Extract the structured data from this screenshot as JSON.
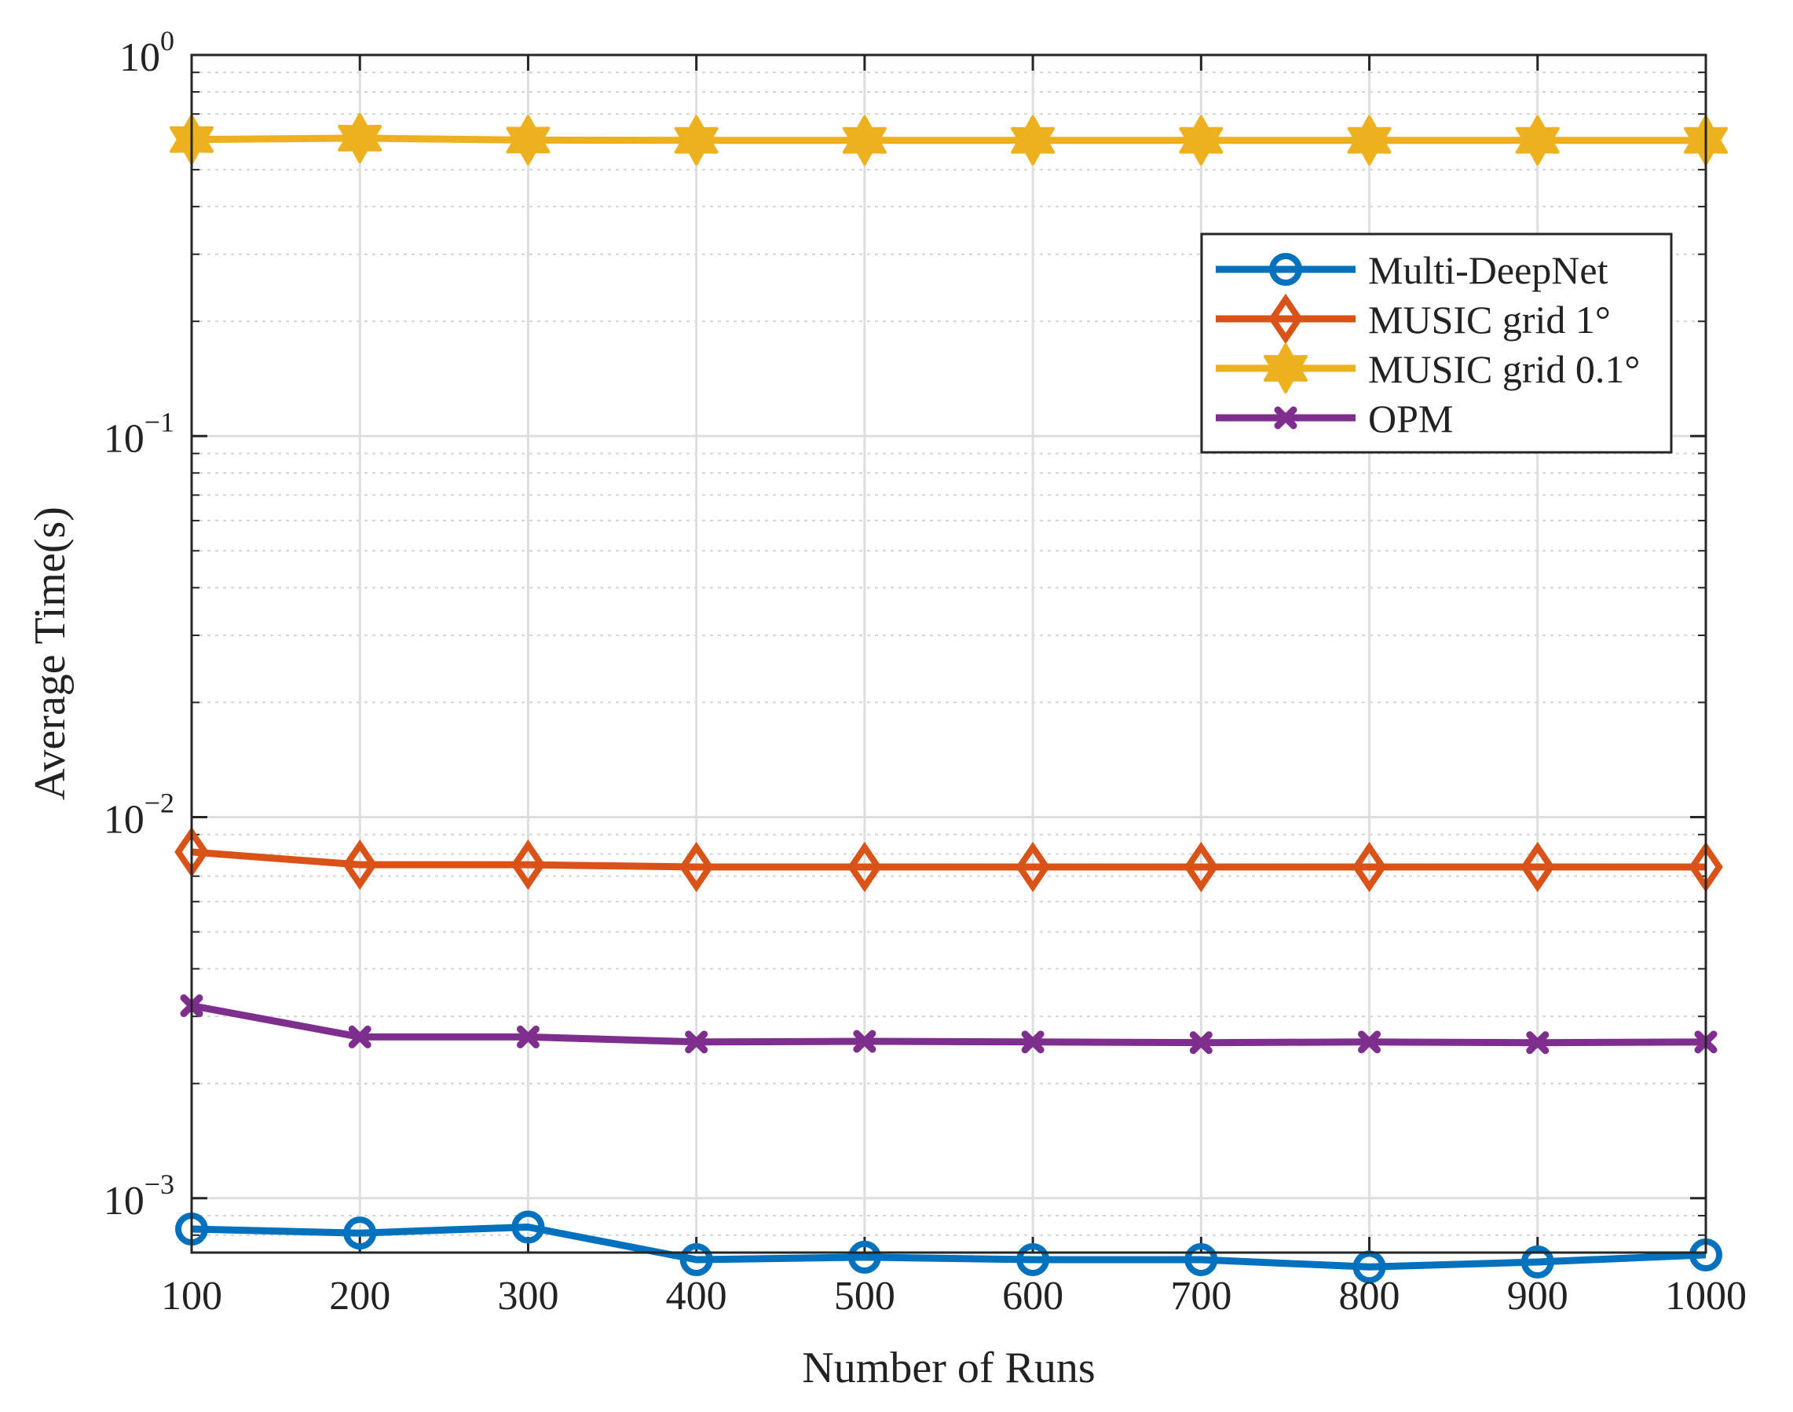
{
  "chart_data": {
    "type": "line",
    "title": "",
    "xlabel": "Number of Runs",
    "ylabel": "Average Time(s)",
    "yscale": "log",
    "xlim": [
      100,
      1000
    ],
    "ylim": [
      0.00072,
      1
    ],
    "x": [
      100,
      200,
      300,
      400,
      500,
      600,
      700,
      800,
      900,
      1000
    ],
    "xticks": [
      "100",
      "200",
      "300",
      "400",
      "500",
      "600",
      "700",
      "800",
      "900",
      "1000"
    ],
    "yticks": [
      {
        "value": 0.001,
        "base": "10",
        "exp": "−3"
      },
      {
        "value": 0.01,
        "base": "10",
        "exp": "−2"
      },
      {
        "value": 0.1,
        "base": "10",
        "exp": "−1"
      },
      {
        "value": 1,
        "base": "10",
        "exp": "0"
      }
    ],
    "grid": true,
    "minor_grid": true,
    "legend_position": "top-right",
    "series": [
      {
        "name": "Multi-DeepNet",
        "color": "#0072BD",
        "marker": "circle",
        "values": [
          0.00083,
          0.00081,
          0.00084,
          0.00069,
          0.0007,
          0.00069,
          0.00069,
          0.00066,
          0.00068,
          0.00071
        ]
      },
      {
        "name": "MUSIC grid 1°",
        "color": "#D95319",
        "marker": "diamond",
        "values": [
          0.0081,
          0.0075,
          0.0075,
          0.0074,
          0.0074,
          0.0074,
          0.0074,
          0.0074,
          0.0074,
          0.0074
        ]
      },
      {
        "name": "MUSIC grid 0.1°",
        "color": "#EDB120",
        "marker": "hexagram",
        "values": [
          0.6,
          0.605,
          0.598,
          0.597,
          0.597,
          0.597,
          0.597,
          0.597,
          0.597,
          0.597
        ]
      },
      {
        "name": "OPM",
        "color": "#7E2F8E",
        "marker": "x",
        "values": [
          0.0032,
          0.00265,
          0.00265,
          0.00257,
          0.00258,
          0.00257,
          0.00256,
          0.00257,
          0.00256,
          0.00257
        ]
      }
    ]
  }
}
